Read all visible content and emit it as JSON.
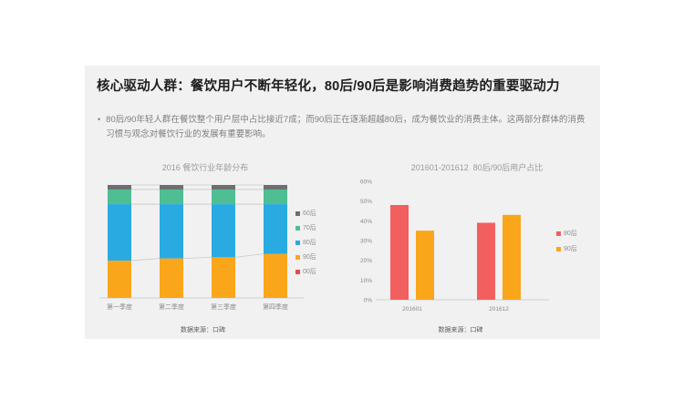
{
  "slide": {
    "title": "核心驱动人群：餐饮用户不断年轻化，80后/90后是影响消费趋势的重要驱动力",
    "bullet_marker": "•",
    "bullet": "80后/90年轻人群在餐饮整个用户层中占比接近7成；而90后正在逐渐超越80后，成为餐饮业的消费主体。这两部分群体的消费习惯与观念对餐饮行业的发展有重要影响。"
  },
  "colors": {
    "card_background": "#f1f1f2",
    "title_text": "#1e1e1e",
    "body_text": "#7e7f82",
    "axis_text": "#8a8a8a",
    "axis_line": "#cfcfcf",
    "connector_line": "#c9c9c9"
  },
  "chart_data": [
    {
      "type": "bar",
      "subtype": "stacked-100",
      "title": "2016 餐饮行业年龄分布",
      "categories": [
        "第一季度",
        "第二季度",
        "第三季度",
        "第四季度"
      ],
      "series": [
        {
          "name": "60后",
          "color": "#6d6e71",
          "values": [
            4,
            4,
            4,
            4
          ]
        },
        {
          "name": "70后",
          "color": "#4fbe92",
          "values": [
            13,
            13,
            13,
            13
          ]
        },
        {
          "name": "80后",
          "color": "#29abe2",
          "values": [
            50,
            48,
            47,
            44
          ]
        },
        {
          "name": "90后",
          "color": "#faa61a",
          "values": [
            33,
            35,
            36,
            39
          ]
        },
        {
          "name": "00后",
          "color": "#e84b4b",
          "values": [
            0,
            0,
            0,
            0
          ]
        }
      ],
      "ylim": [
        0,
        100
      ],
      "grid": false,
      "legend_position": "right",
      "source": "数据来源：口碑"
    },
    {
      "type": "bar",
      "subtype": "grouped",
      "title": "201601-201612  80后/90后用户占比",
      "categories": [
        "201601",
        "201612"
      ],
      "series": [
        {
          "name": "80后",
          "color": "#f25f5f",
          "values": [
            48,
            39
          ]
        },
        {
          "name": "90后",
          "color": "#faa61a",
          "values": [
            35,
            43
          ]
        }
      ],
      "yticks": [
        "60%",
        "50%",
        "40%",
        "30%",
        "20%",
        "10%",
        "0%"
      ],
      "ylim": [
        0,
        60
      ],
      "grid": false,
      "legend_position": "right",
      "source": "数据来源：口碑"
    }
  ]
}
